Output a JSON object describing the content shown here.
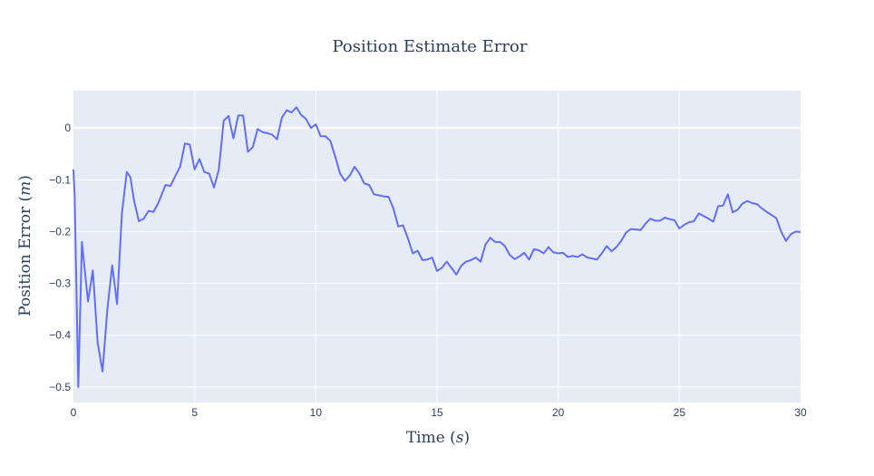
{
  "chart_data": {
    "type": "line",
    "title": "Position Estimate Error",
    "xlabel": "Time (",
    "xlabel_unit": "s",
    "xlabel_close": ")",
    "ylabel": "Position Error (",
    "ylabel_unit": "m",
    "ylabel_close": ")",
    "xlim": [
      0,
      30
    ],
    "ylim": [
      -0.53,
      0.072
    ],
    "xticks": [
      0,
      5,
      10,
      15,
      20,
      25,
      30
    ],
    "yticks": [
      0,
      -0.1,
      -0.2,
      -0.3,
      -0.4,
      -0.5
    ],
    "ytick_labels": [
      "0",
      "−0.1",
      "−0.2",
      "−0.3",
      "−0.4",
      "−0.5"
    ],
    "grid": true,
    "colors": {
      "line": "#636efa",
      "plot_bg": "#e5ecf6",
      "grid": "#ffffff",
      "text": "#2a3f5f"
    },
    "series": [
      {
        "x": [
          0,
          0.05,
          0.2,
          0.35,
          0.6,
          0.8,
          1.0,
          1.2,
          1.4,
          1.6,
          1.8,
          2.0,
          2.2,
          2.35,
          2.5,
          2.7,
          2.9,
          3.1,
          3.3,
          3.5,
          3.8,
          4.0,
          4.2,
          4.4,
          4.6,
          4.8,
          5.0,
          5.2,
          5.4,
          5.6,
          5.8,
          6.0,
          6.2,
          6.4,
          6.6,
          6.8,
          7.0,
          7.2,
          7.4,
          7.6,
          7.8,
          8.0,
          8.2,
          8.4,
          8.6,
          8.8,
          9.0,
          9.2,
          9.4,
          9.6,
          9.8,
          10.0,
          10.2,
          10.4,
          10.6,
          10.8,
          11.0,
          11.2,
          11.4,
          11.6,
          11.8,
          12.0,
          12.2,
          12.4,
          12.6,
          12.8,
          13.0,
          13.2,
          13.4,
          13.6,
          13.8,
          14.0,
          14.2,
          14.4,
          14.6,
          14.8,
          15.0,
          15.2,
          15.4,
          15.6,
          15.8,
          16.0,
          16.2,
          16.4,
          16.6,
          16.8,
          17.0,
          17.2,
          17.4,
          17.6,
          17.8,
          18.0,
          18.2,
          18.4,
          18.6,
          18.8,
          19.0,
          19.2,
          19.4,
          19.6,
          19.8,
          20.0,
          20.2,
          20.4,
          20.6,
          20.8,
          21.0,
          21.2,
          21.4,
          21.6,
          21.8,
          22.0,
          22.2,
          22.4,
          22.6,
          22.8,
          23.0,
          23.2,
          23.4,
          23.6,
          23.8,
          24.0,
          24.2,
          24.4,
          24.6,
          24.8,
          25.0,
          25.2,
          25.4,
          25.6,
          25.8,
          26.0,
          26.2,
          26.4,
          26.6,
          26.8,
          27.0,
          27.2,
          27.4,
          27.6,
          27.8,
          28.0,
          28.2,
          28.4,
          28.6,
          28.8,
          29.0,
          29.2,
          29.4,
          29.6,
          29.8,
          30.0
        ],
        "y": [
          -0.08,
          -0.13,
          -0.5,
          -0.22,
          -0.335,
          -0.275,
          -0.415,
          -0.47,
          -0.35,
          -0.265,
          -0.34,
          -0.165,
          -0.085,
          -0.095,
          -0.14,
          -0.18,
          -0.175,
          -0.16,
          -0.162,
          -0.145,
          -0.11,
          -0.112,
          -0.093,
          -0.075,
          -0.03,
          -0.032,
          -0.08,
          -0.06,
          -0.085,
          -0.088,
          -0.115,
          -0.08,
          0.014,
          0.023,
          -0.02,
          0.024,
          0.024,
          -0.046,
          -0.037,
          -0.002,
          -0.008,
          -0.01,
          -0.013,
          -0.022,
          0.02,
          0.034,
          0.03,
          0.04,
          0.025,
          0.017,
          0.0,
          0.007,
          -0.016,
          -0.016,
          -0.025,
          -0.055,
          -0.088,
          -0.102,
          -0.092,
          -0.075,
          -0.088,
          -0.107,
          -0.11,
          -0.128,
          -0.13,
          -0.132,
          -0.133,
          -0.155,
          -0.19,
          -0.188,
          -0.213,
          -0.242,
          -0.237,
          -0.255,
          -0.254,
          -0.25,
          -0.276,
          -0.27,
          -0.258,
          -0.27,
          -0.283,
          -0.266,
          -0.258,
          -0.255,
          -0.25,
          -0.258,
          -0.225,
          -0.212,
          -0.22,
          -0.22,
          -0.228,
          -0.245,
          -0.253,
          -0.248,
          -0.241,
          -0.254,
          -0.234,
          -0.236,
          -0.242,
          -0.23,
          -0.24,
          -0.242,
          -0.241,
          -0.249,
          -0.247,
          -0.249,
          -0.244,
          -0.25,
          -0.252,
          -0.254,
          -0.242,
          -0.228,
          -0.238,
          -0.23,
          -0.218,
          -0.202,
          -0.195,
          -0.196,
          -0.197,
          -0.185,
          -0.175,
          -0.179,
          -0.179,
          -0.173,
          -0.176,
          -0.178,
          -0.194,
          -0.187,
          -0.182,
          -0.18,
          -0.165,
          -0.17,
          -0.175,
          -0.181,
          -0.151,
          -0.15,
          -0.128,
          -0.163,
          -0.158,
          -0.146,
          -0.141,
          -0.145,
          -0.147,
          -0.155,
          -0.162,
          -0.168,
          -0.174,
          -0.2,
          -0.218,
          -0.205,
          -0.2,
          -0.201
        ]
      }
    ]
  }
}
